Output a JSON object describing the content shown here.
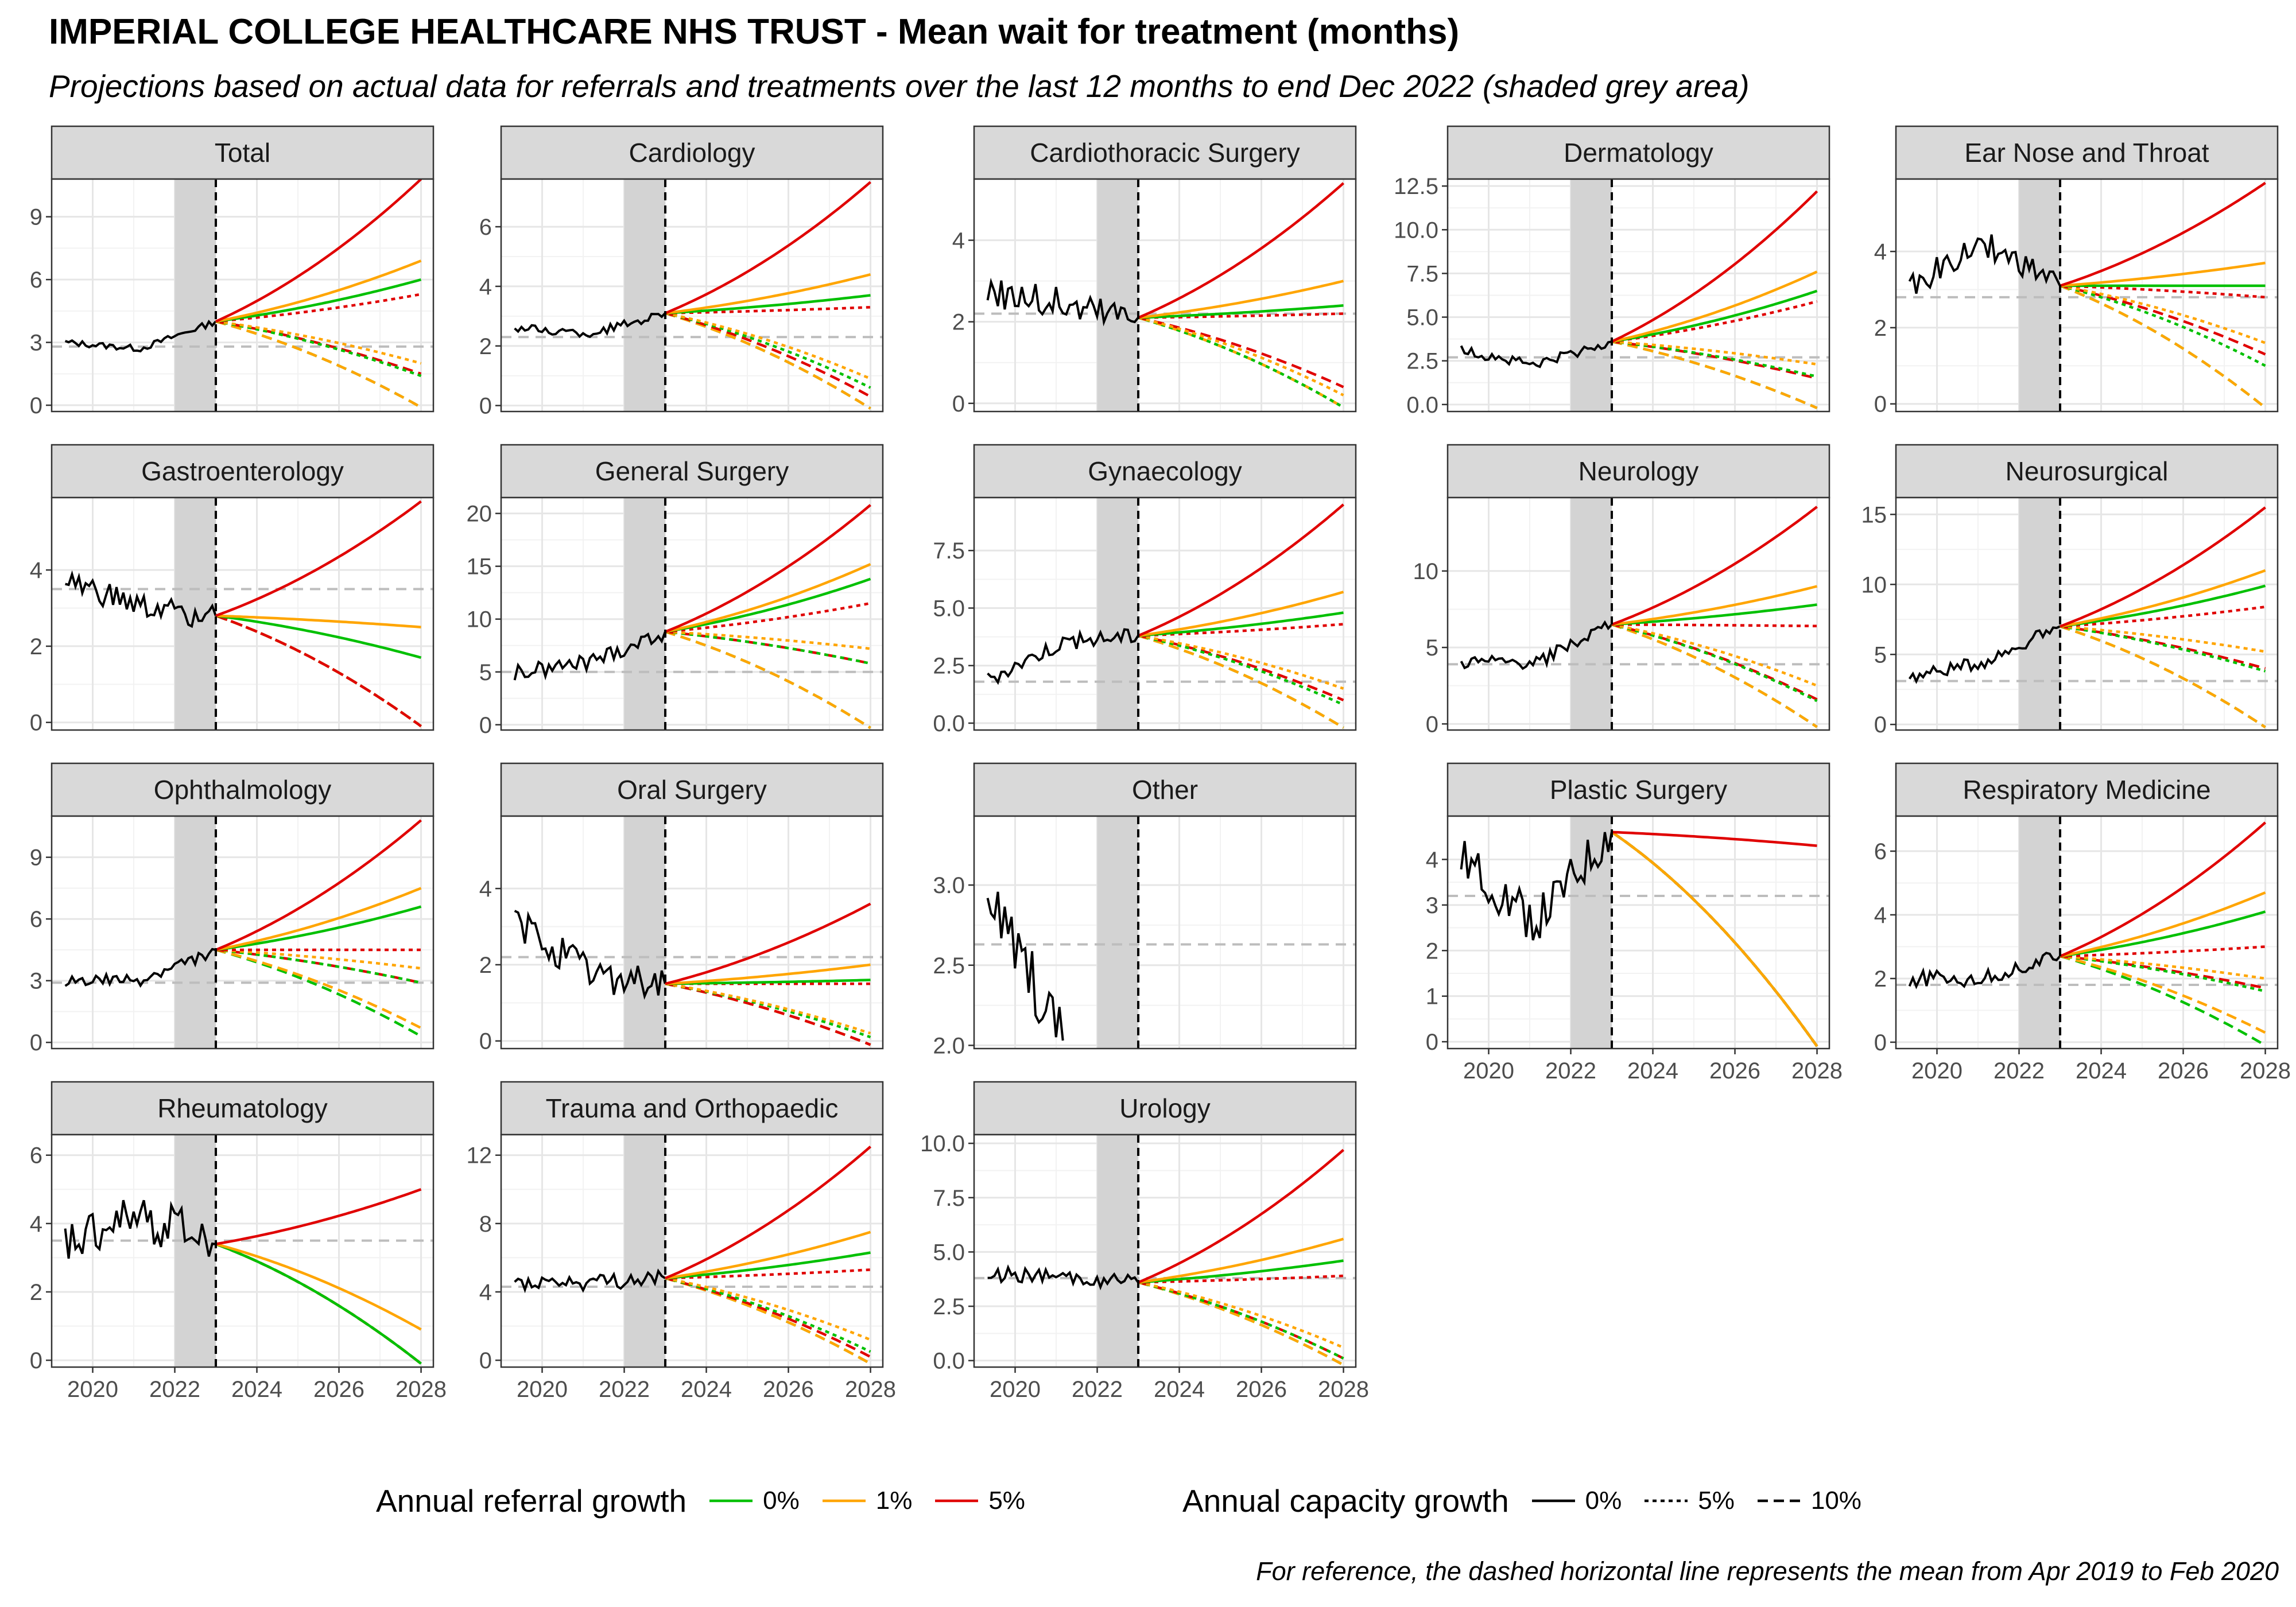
{
  "title": "IMPERIAL COLLEGE HEALTHCARE NHS TRUST - Mean wait for treatment (months)",
  "subtitle": "Projections based on actual data for referrals and treatments over the last 12 months to end Dec 2022 (shaded grey area)",
  "caption": "For reference, the dashed horizontal line represents the mean from Apr 2019 to Feb 2020",
  "legend": {
    "referral_title": "Annual referral growth",
    "referral_items": [
      {
        "label": "0%",
        "color": "#00c000"
      },
      {
        "label": "1%",
        "color": "#ffa500"
      },
      {
        "label": "5%",
        "color": "#e00000"
      }
    ],
    "capacity_title": "Annual capacity growth",
    "capacity_items": [
      {
        "label": "0%",
        "dash": "solid"
      },
      {
        "label": "5%",
        "dash": "dotted"
      },
      {
        "label": "10%",
        "dash": "dashed"
      }
    ]
  },
  "chart_data": {
    "type": "line",
    "xlim": [
      2019.0,
      2028.3
    ],
    "x_ticks": [
      2020,
      2022,
      2024,
      2026,
      2028
    ],
    "shade_range": [
      2022.0,
      2023.0
    ],
    "projection_start": 2023.0,
    "projection_end": 2028.0,
    "panels": [
      {
        "name": "Total",
        "ylim": [
          -0.3,
          10.8
        ],
        "yticks": [
          0,
          3,
          6,
          9
        ],
        "ytick_labels": [
          "0",
          "3",
          "6",
          "9"
        ],
        "ref": 2.8,
        "hist_start": 3.0,
        "hist_mid": 2.7,
        "hist_end": 4.0,
        "noise": 0.15,
        "proj": {
          "r0c0": 6.0,
          "r1c0": 6.9,
          "r5c0": 10.8,
          "r0c5": 1.4,
          "r1c5": 2.0,
          "r5c5": 5.3,
          "r0c10": -0.1,
          "r1c10": -0.1,
          "r5c10": 1.5
        },
        "xaxis": false
      },
      {
        "name": "Cardiology",
        "ylim": [
          -0.2,
          7.6
        ],
        "yticks": [
          0,
          2,
          4,
          6
        ],
        "ytick_labels": [
          "0",
          "2",
          "4",
          "6"
        ],
        "ref": 2.3,
        "hist_start": 2.6,
        "hist_mid": 2.4,
        "hist_end": 3.1,
        "noise": 0.15,
        "proj": {
          "r0c0": 3.7,
          "r1c0": 4.4,
          "r5c0": 7.5,
          "r0c5": 0.6,
          "r1c5": 0.9,
          "r5c5": 3.3,
          "r0c10": -0.1,
          "r1c10": -0.1,
          "r5c10": 0.3
        },
        "xaxis": false
      },
      {
        "name": "Cardiothoracic Surgery",
        "ylim": [
          -0.2,
          5.5
        ],
        "yticks": [
          0,
          2,
          4
        ],
        "ytick_labels": [
          "0",
          "2",
          "4"
        ],
        "ref": 2.2,
        "hist_start": 2.8,
        "hist_mid": 2.4,
        "hist_end": 2.1,
        "noise": 0.45,
        "proj": {
          "r0c0": 2.4,
          "r1c0": 3.0,
          "r5c0": 5.4,
          "r0c5": -0.1,
          "r1c5": 0.2,
          "r5c5": 2.2,
          "r0c10": -0.1,
          "r1c10": -0.1,
          "r5c10": 0.4
        },
        "xaxis": false
      },
      {
        "name": "Dermatology",
        "ylim": [
          -0.4,
          12.9
        ],
        "yticks": [
          0,
          2.5,
          5,
          7.5,
          10,
          12.5
        ],
        "ytick_labels": [
          "0.0",
          "2.5",
          "5.0",
          "7.5",
          "10.0",
          "12.5"
        ],
        "ref": 2.7,
        "hist_start": 3.1,
        "hist_mid": 2.3,
        "hist_end": 3.6,
        "noise": 0.3,
        "proj": {
          "r0c0": 6.5,
          "r1c0": 7.6,
          "r5c0": 12.2,
          "r0c5": 1.6,
          "r1c5": 2.3,
          "r5c5": 5.9,
          "r0c10": -0.2,
          "r1c10": -0.2,
          "r5c10": 1.5
        },
        "xaxis": false
      },
      {
        "name": "Ear Nose and Throat",
        "ylim": [
          -0.2,
          5.9
        ],
        "yticks": [
          0,
          2,
          4
        ],
        "ytick_labels": [
          "0",
          "2",
          "4"
        ],
        "ref": 2.8,
        "hist_start": 3.1,
        "hist_mid": 4.2,
        "hist_end": 3.1,
        "noise": 0.35,
        "proj": {
          "r0c0": 3.1,
          "r1c0": 3.7,
          "r5c0": 5.8,
          "r0c5": 1.0,
          "r1c5": 1.6,
          "r5c5": 2.8,
          "r0c10": -0.1,
          "r1c10": -0.1,
          "r5c10": 1.3
        },
        "xaxis": false
      },
      {
        "name": "Gastroenterology",
        "ylim": [
          -0.2,
          5.9
        ],
        "yticks": [
          0,
          2,
          4
        ],
        "ytick_labels": [
          "0",
          "2",
          "4"
        ],
        "ref": 3.5,
        "hist_start": 3.7,
        "hist_mid": 3.0,
        "hist_end": 2.8,
        "noise": 0.35,
        "proj": {
          "r0c0": 1.7,
          "r1c0": 2.5,
          "r5c0": 5.8,
          "r0c5": -0.1,
          "r1c5": -0.1,
          "r5c5": -0.1,
          "r0c10": -0.1,
          "r1c10": -0.1,
          "r5c10": -0.1
        },
        "xaxis": false
      },
      {
        "name": "General Surgery",
        "ylim": [
          -0.5,
          21.5
        ],
        "yticks": [
          0,
          5,
          10,
          15,
          20
        ],
        "ytick_labels": [
          "0",
          "5",
          "10",
          "15",
          "20"
        ],
        "ref": 5.0,
        "hist_start": 4.8,
        "hist_mid": 6.0,
        "hist_end": 8.8,
        "noise": 0.8,
        "proj": {
          "r0c0": 13.8,
          "r1c0": 15.2,
          "r5c0": 20.8,
          "r0c5": 5.8,
          "r1c5": 7.2,
          "r5c5": 11.5,
          "r0c10": -0.3,
          "r1c10": -0.3,
          "r5c10": 5.8
        },
        "xaxis": false
      },
      {
        "name": "Gynaecology",
        "ylim": [
          -0.3,
          9.8
        ],
        "yticks": [
          0,
          2.5,
          5,
          7.5
        ],
        "ytick_labels": [
          "0.0",
          "2.5",
          "5.0",
          "7.5"
        ],
        "ref": 1.8,
        "hist_start": 1.9,
        "hist_mid": 3.5,
        "hist_end": 3.8,
        "noise": 0.35,
        "proj": {
          "r0c0": 4.8,
          "r1c0": 5.7,
          "r5c0": 9.5,
          "r0c5": 0.8,
          "r1c5": 1.5,
          "r5c5": 4.3,
          "r0c10": -0.2,
          "r1c10": -0.2,
          "r5c10": 1.0
        },
        "xaxis": false
      },
      {
        "name": "Neurology",
        "ylim": [
          -0.4,
          14.8
        ],
        "yticks": [
          0,
          5,
          10
        ],
        "ytick_labels": [
          "0",
          "5",
          "10"
        ],
        "ref": 3.9,
        "hist_start": 4.0,
        "hist_mid": 4.0,
        "hist_end": 6.5,
        "noise": 0.45,
        "proj": {
          "r0c0": 7.8,
          "r1c0": 9.0,
          "r5c0": 14.2,
          "r0c5": 1.5,
          "r1c5": 2.5,
          "r5c5": 6.4,
          "r0c10": -0.2,
          "r1c10": -0.2,
          "r5c10": 1.6
        },
        "xaxis": false
      },
      {
        "name": "Neurosurgical",
        "ylim": [
          -0.4,
          16.2
        ],
        "yticks": [
          0,
          5,
          10,
          15
        ],
        "ytick_labels": [
          "0",
          "5",
          "10",
          "15"
        ],
        "ref": 3.1,
        "hist_start": 3.4,
        "hist_mid": 4.5,
        "hist_end": 7.0,
        "noise": 0.45,
        "proj": {
          "r0c0": 9.9,
          "r1c0": 11.0,
          "r5c0": 15.5,
          "r0c5": 3.8,
          "r1c5": 5.2,
          "r5c5": 8.4,
          "r0c10": -0.2,
          "r1c10": -0.2,
          "r5c10": 4.0
        },
        "xaxis": false
      },
      {
        "name": "Ophthalmology",
        "ylim": [
          -0.3,
          11.0
        ],
        "yticks": [
          0,
          3,
          6,
          9
        ],
        "ytick_labels": [
          "0",
          "3",
          "6",
          "9"
        ],
        "ref": 2.9,
        "hist_start": 3.0,
        "hist_mid": 3.0,
        "hist_end": 4.5,
        "noise": 0.3,
        "proj": {
          "r0c0": 6.6,
          "r1c0": 7.5,
          "r5c0": 10.8,
          "r0c5": 2.9,
          "r1c5": 3.6,
          "r5c5": 4.5,
          "r0c10": 0.3,
          "r1c10": 0.7,
          "r5c10": 2.9
        },
        "xaxis": false
      },
      {
        "name": "Oral Surgery",
        "ylim": [
          -0.2,
          5.9
        ],
        "yticks": [
          0,
          2,
          4
        ],
        "ytick_labels": [
          "0",
          "2",
          "4"
        ],
        "ref": 2.2,
        "hist_start": 3.1,
        "hist_mid": 1.8,
        "hist_end": 1.5,
        "noise": 0.5,
        "proj": {
          "r0c0": 1.6,
          "r1c0": 2.0,
          "r5c0": 3.6,
          "r0c5": 0.1,
          "r1c5": 0.2,
          "r5c5": 1.5,
          "r0c10": -0.1,
          "r1c10": -0.1,
          "r5c10": -0.1
        },
        "xaxis": false
      },
      {
        "name": "Other",
        "ylim": [
          1.98,
          3.43
        ],
        "yticks": [
          2,
          2.5,
          3
        ],
        "ytick_labels": [
          "2.0",
          "2.5",
          "3.0"
        ],
        "ref": 2.63,
        "hist_start": 2.9,
        "hist_mid": 2.5,
        "hist_end": 2.03,
        "noise": 0.2,
        "hist_end_x": 2021.2,
        "proj": null,
        "xaxis": false
      },
      {
        "name": "Plastic Surgery",
        "ylim": [
          -0.15,
          4.95
        ],
        "yticks": [
          0,
          1,
          2,
          3,
          4
        ],
        "ytick_labels": [
          "0",
          "1",
          "2",
          "3",
          "4"
        ],
        "ref": 3.2,
        "hist_start": 4.0,
        "hist_mid": 2.6,
        "hist_end": 4.6,
        "noise": 0.5,
        "proj": {
          "r0c0": -0.1,
          "r1c0": -0.1,
          "r5c0": 4.3,
          "r0c5": -0.1,
          "r1c5": -0.1,
          "r5c5": -0.1,
          "r0c10": -0.1,
          "r1c10": -0.1,
          "r5c10": -0.1
        },
        "xaxis": true
      },
      {
        "name": "Respiratory Medicine",
        "ylim": [
          -0.2,
          7.1
        ],
        "yticks": [
          0,
          2,
          4,
          6
        ],
        "ytick_labels": [
          "0",
          "2",
          "4",
          "6"
        ],
        "ref": 1.8,
        "hist_start": 2.0,
        "hist_mid": 2.0,
        "hist_end": 2.7,
        "noise": 0.25,
        "proj": {
          "r0c0": 4.1,
          "r1c0": 4.7,
          "r5c0": 6.9,
          "r0c5": 1.6,
          "r1c5": 2.0,
          "r5c5": 3.0,
          "r0c10": -0.1,
          "r1c10": 0.3,
          "r5c10": 1.7
        },
        "xaxis": true
      },
      {
        "name": "Rheumatology",
        "ylim": [
          -0.2,
          6.6
        ],
        "yticks": [
          0,
          2,
          4,
          6
        ],
        "ytick_labels": [
          "0",
          "2",
          "4",
          "6"
        ],
        "ref": 3.5,
        "hist_start": 3.5,
        "hist_mid": 4.2,
        "hist_end": 3.4,
        "noise": 0.7,
        "proj": {
          "r0c0": -0.1,
          "r1c0": 0.9,
          "r5c0": 5.0,
          "r0c5": -0.1,
          "r1c5": -0.1,
          "r5c5": -0.1,
          "r0c10": -0.1,
          "r1c10": -0.1,
          "r5c10": -0.1
        },
        "xaxis": true
      },
      {
        "name": "Trauma and Orthopaedic",
        "ylim": [
          -0.4,
          13.2
        ],
        "yticks": [
          0,
          4,
          8,
          12
        ],
        "ytick_labels": [
          "0",
          "4",
          "8",
          "12"
        ],
        "ref": 4.3,
        "hist_start": 4.6,
        "hist_mid": 4.5,
        "hist_end": 4.8,
        "noise": 0.5,
        "proj": {
          "r0c0": 6.3,
          "r1c0": 7.5,
          "r5c0": 12.5,
          "r0c5": 0.5,
          "r1c5": 1.2,
          "r5c5": 5.3,
          "r0c10": -0.2,
          "r1c10": -0.2,
          "r5c10": 0.2
        },
        "xaxis": true
      },
      {
        "name": "Urology",
        "ylim": [
          -0.3,
          10.4
        ],
        "yticks": [
          0,
          2.5,
          5,
          7.5,
          10
        ],
        "ytick_labels": [
          "0.0",
          "2.5",
          "5.0",
          "7.5",
          "10.0"
        ],
        "ref": 3.8,
        "hist_start": 4.0,
        "hist_mid": 3.8,
        "hist_end": 3.6,
        "noise": 0.35,
        "proj": {
          "r0c0": 4.6,
          "r1c0": 5.6,
          "r5c0": 9.7,
          "r0c5": 0.1,
          "r1c5": 0.6,
          "r5c5": 3.9,
          "r0c10": -0.2,
          "r1c10": -0.2,
          "r5c10": 0.1
        },
        "xaxis": true
      }
    ]
  }
}
